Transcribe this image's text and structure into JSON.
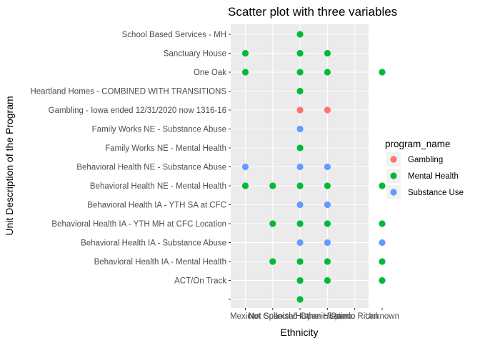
{
  "chart_data": {
    "type": "scatter",
    "title": "Scatter plot with three variables",
    "xlabel": "Ethnicity",
    "ylabel": "Unit Description of the Program",
    "x_categories": [
      "Mexican",
      "Not Collected",
      "Not Spanish/Hispanic/Latino",
      "Other Hispanic",
      "Puerto Rican",
      "Unknown"
    ],
    "y_categories": [
      "",
      "ACT/On Track",
      "Behavioral Health IA -  Mental Health",
      "Behavioral Health IA - Substance Abuse",
      "Behavioral Health IA - YTH MH at CFC Location",
      "Behavioral Health IA - YTH SA at CFC",
      "Behavioral Health NE - Mental Health",
      "Behavioral Health NE - Substance Abuse",
      "Family Works NE - Mental Health",
      "Family Works NE - Substance Abuse",
      "Gambling - Iowa ended 12/31/2020 now 1316-16",
      "Heartland Homes - COMBINED WITH TRANSITIONS",
      "One Oak",
      "Sanctuary House",
      "School Based Services - MH"
    ],
    "legend": {
      "title": "program_name",
      "position": "right",
      "entries": [
        {
          "name": "Gambling",
          "color": "#F8766D"
        },
        {
          "name": "Mental Health",
          "color": "#00BA38"
        },
        {
          "name": "Substance Use",
          "color": "#619CFF"
        }
      ]
    },
    "series": [
      {
        "name": "Gambling",
        "color": "#F8766D",
        "points": [
          {
            "x": "Not Spanish/Hispanic/Latino",
            "y": "Gambling - Iowa ended 12/31/2020 now 1316-16"
          },
          {
            "x": "Other Hispanic",
            "y": "Gambling - Iowa ended 12/31/2020 now 1316-16"
          }
        ]
      },
      {
        "name": "Mental Health",
        "color": "#00BA38",
        "points": [
          {
            "x": "Not Spanish/Hispanic/Latino",
            "y": ""
          },
          {
            "x": "Not Spanish/Hispanic/Latino",
            "y": "ACT/On Track"
          },
          {
            "x": "Other Hispanic",
            "y": "ACT/On Track"
          },
          {
            "x": "Unknown",
            "y": "ACT/On Track"
          },
          {
            "x": "Not Collected",
            "y": "Behavioral Health IA -  Mental Health"
          },
          {
            "x": "Not Spanish/Hispanic/Latino",
            "y": "Behavioral Health IA -  Mental Health"
          },
          {
            "x": "Other Hispanic",
            "y": "Behavioral Health IA -  Mental Health"
          },
          {
            "x": "Unknown",
            "y": "Behavioral Health IA -  Mental Health"
          },
          {
            "x": "Not Collected",
            "y": "Behavioral Health IA - YTH MH at CFC Location"
          },
          {
            "x": "Not Spanish/Hispanic/Latino",
            "y": "Behavioral Health IA - YTH MH at CFC Location"
          },
          {
            "x": "Other Hispanic",
            "y": "Behavioral Health IA - YTH MH at CFC Location"
          },
          {
            "x": "Unknown",
            "y": "Behavioral Health IA - YTH MH at CFC Location"
          },
          {
            "x": "Mexican",
            "y": "Behavioral Health NE - Mental Health"
          },
          {
            "x": "Not Collected",
            "y": "Behavioral Health NE - Mental Health"
          },
          {
            "x": "Not Spanish/Hispanic/Latino",
            "y": "Behavioral Health NE - Mental Health"
          },
          {
            "x": "Other Hispanic",
            "y": "Behavioral Health NE - Mental Health"
          },
          {
            "x": "Unknown",
            "y": "Behavioral Health NE - Mental Health"
          },
          {
            "x": "Not Spanish/Hispanic/Latino",
            "y": "Family Works NE - Mental Health"
          },
          {
            "x": "Not Spanish/Hispanic/Latino",
            "y": "Heartland Homes - COMBINED WITH TRANSITIONS"
          },
          {
            "x": "Mexican",
            "y": "One Oak"
          },
          {
            "x": "Not Spanish/Hispanic/Latino",
            "y": "One Oak"
          },
          {
            "x": "Other Hispanic",
            "y": "One Oak"
          },
          {
            "x": "Unknown",
            "y": "One Oak"
          },
          {
            "x": "Mexican",
            "y": "Sanctuary House"
          },
          {
            "x": "Not Spanish/Hispanic/Latino",
            "y": "Sanctuary House"
          },
          {
            "x": "Other Hispanic",
            "y": "Sanctuary House"
          },
          {
            "x": "Not Spanish/Hispanic/Latino",
            "y": "School Based Services - MH"
          }
        ]
      },
      {
        "name": "Substance Use",
        "color": "#619CFF",
        "points": [
          {
            "x": "Not Spanish/Hispanic/Latino",
            "y": "Behavioral Health IA - Substance Abuse"
          },
          {
            "x": "Other Hispanic",
            "y": "Behavioral Health IA - Substance Abuse"
          },
          {
            "x": "Unknown",
            "y": "Behavioral Health IA - Substance Abuse"
          },
          {
            "x": "Not Spanish/Hispanic/Latino",
            "y": "Behavioral Health IA - YTH SA at CFC"
          },
          {
            "x": "Other Hispanic",
            "y": "Behavioral Health IA - YTH SA at CFC"
          },
          {
            "x": "Mexican",
            "y": "Behavioral Health NE - Substance Abuse"
          },
          {
            "x": "Not Spanish/Hispanic/Latino",
            "y": "Behavioral Health NE - Substance Abuse"
          },
          {
            "x": "Other Hispanic",
            "y": "Behavioral Health NE - Substance Abuse"
          },
          {
            "x": "Not Spanish/Hispanic/Latino",
            "y": "Family Works NE - Substance Abuse"
          }
        ]
      }
    ],
    "grid": true,
    "panel_background": "#EBEBEB",
    "grid_color": "#FFFFFF"
  }
}
